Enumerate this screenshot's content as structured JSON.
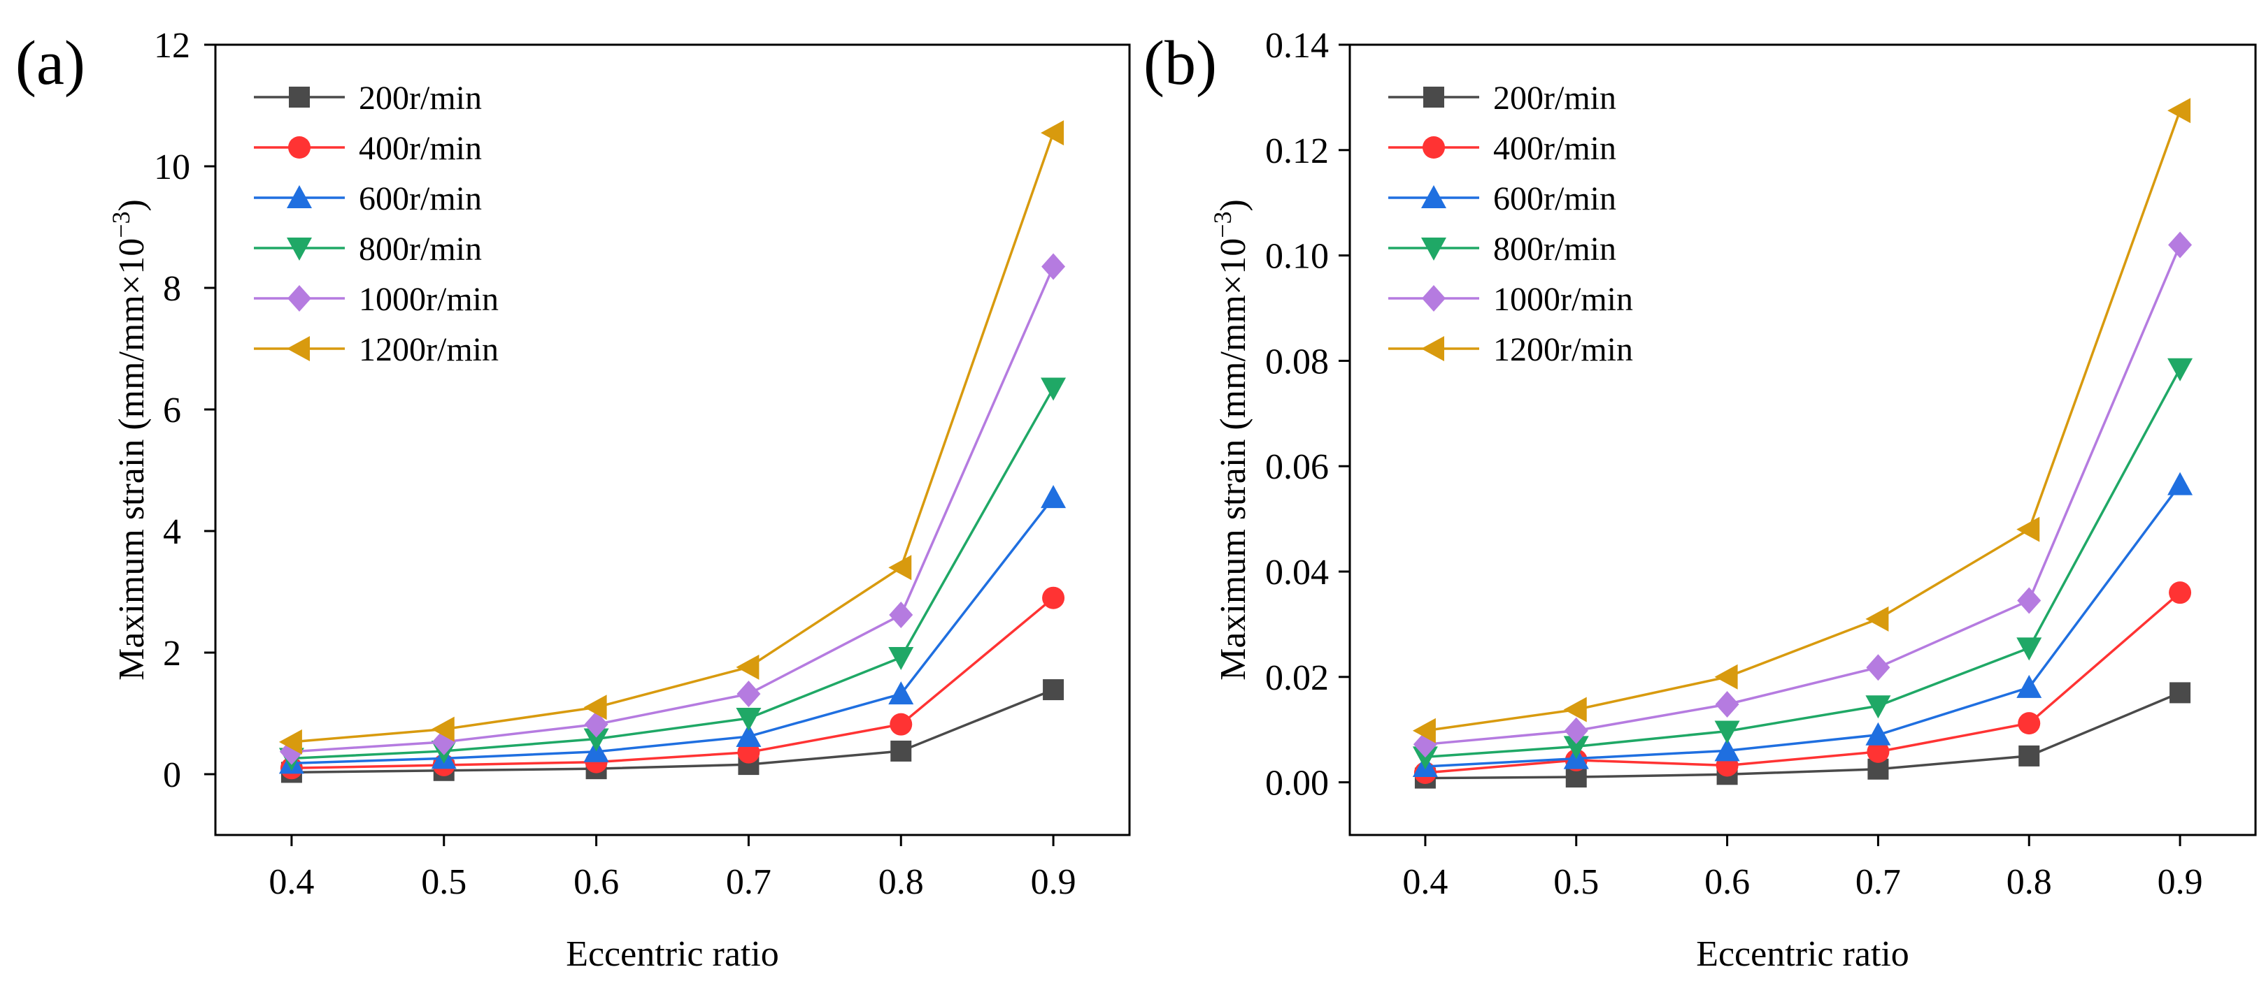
{
  "chart_data": [
    {
      "type": "line",
      "panel_label": "(a)",
      "title": "",
      "xlabel": "Eccentric ratio",
      "ylabel_prefix": "Maximum strain (mm/mm×10",
      "ylabel_exp": "−3",
      "ylabel_suffix": ")",
      "x": [
        0.4,
        0.5,
        0.6,
        0.7,
        0.8,
        0.9
      ],
      "x_tick_labels": [
        "0.4",
        "0.5",
        "0.6",
        "0.7",
        "0.8",
        "0.9"
      ],
      "xlim": [
        0.35,
        0.95
      ],
      "ylim": [
        -1,
        12
      ],
      "y_ticks": [
        0,
        2,
        4,
        6,
        8,
        10,
        12
      ],
      "y_tick_labels": [
        "0",
        "2",
        "4",
        "6",
        "8",
        "10",
        "12"
      ],
      "legend_position": "top-left",
      "series": [
        {
          "name": "200r/min",
          "color": "#4a4a4a",
          "marker": "square",
          "values": [
            0.03,
            0.06,
            0.09,
            0.16,
            0.38,
            1.39
          ]
        },
        {
          "name": "400r/min",
          "color": "#ff3333",
          "marker": "circle",
          "values": [
            0.1,
            0.15,
            0.2,
            0.36,
            0.82,
            2.9
          ]
        },
        {
          "name": "600r/min",
          "color": "#1f6fe0",
          "marker": "triangle-up",
          "values": [
            0.18,
            0.26,
            0.37,
            0.62,
            1.32,
            4.55
          ]
        },
        {
          "name": "800r/min",
          "color": "#1fa866",
          "marker": "triangle-down",
          "values": [
            0.26,
            0.38,
            0.58,
            0.92,
            1.92,
            6.35
          ]
        },
        {
          "name": "1000r/min",
          "color": "#b57be0",
          "marker": "diamond",
          "values": [
            0.37,
            0.53,
            0.82,
            1.32,
            2.62,
            8.35
          ]
        },
        {
          "name": "1200r/min",
          "color": "#d89a0e",
          "marker": "triangle-left",
          "values": [
            0.53,
            0.74,
            1.1,
            1.76,
            3.4,
            10.55
          ]
        }
      ]
    },
    {
      "type": "line",
      "panel_label": "(b)",
      "title": "",
      "xlabel": "Eccentric ratio",
      "ylabel_prefix": "Maximum strain (mm/mm×10",
      "ylabel_exp": "−3",
      "ylabel_suffix": ")",
      "x": [
        0.4,
        0.5,
        0.6,
        0.7,
        0.8,
        0.9
      ],
      "x_tick_labels": [
        "0.4",
        "0.5",
        "0.6",
        "0.7",
        "0.8",
        "0.9"
      ],
      "xlim": [
        0.35,
        0.95
      ],
      "ylim": [
        -0.01,
        0.14
      ],
      "y_ticks": [
        0,
        0.02,
        0.04,
        0.06,
        0.08,
        0.1,
        0.12,
        0.14
      ],
      "y_tick_labels": [
        "0.00",
        "0.02",
        "0.04",
        "0.06",
        "0.08",
        "0.10",
        "0.12",
        "0.14"
      ],
      "legend_position": "top-left",
      "series": [
        {
          "name": "200r/min",
          "color": "#4a4a4a",
          "marker": "square",
          "values": [
            0.0008,
            0.001,
            0.0015,
            0.0025,
            0.005,
            0.017
          ]
        },
        {
          "name": "400r/min",
          "color": "#ff3333",
          "marker": "circle",
          "values": [
            0.0018,
            0.0042,
            0.0032,
            0.0058,
            0.0112,
            0.036
          ]
        },
        {
          "name": "600r/min",
          "color": "#1f6fe0",
          "marker": "triangle-up",
          "values": [
            0.003,
            0.0045,
            0.006,
            0.009,
            0.018,
            0.0565
          ]
        },
        {
          "name": "800r/min",
          "color": "#1fa866",
          "marker": "triangle-down",
          "values": [
            0.0048,
            0.0068,
            0.0097,
            0.0145,
            0.0255,
            0.0785
          ]
        },
        {
          "name": "1000r/min",
          "color": "#b57be0",
          "marker": "diamond",
          "values": [
            0.0072,
            0.0098,
            0.0148,
            0.0218,
            0.0345,
            0.102
          ]
        },
        {
          "name": "1200r/min",
          "color": "#d89a0e",
          "marker": "triangle-left",
          "values": [
            0.0098,
            0.0138,
            0.02,
            0.031,
            0.048,
            0.1275
          ]
        }
      ]
    }
  ]
}
